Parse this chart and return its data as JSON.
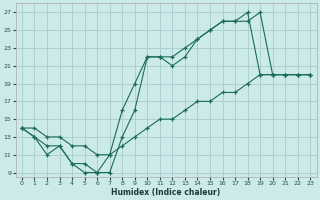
{
  "title": "",
  "xlabel": "Humidex (Indice chaleur)",
  "ylabel": "",
  "background_color": "#cceaea",
  "grid_color": "#aacccc",
  "line_color": "#1a6b5a",
  "xlim": [
    -0.5,
    23.5
  ],
  "ylim": [
    8.5,
    28
  ],
  "xticks": [
    0,
    1,
    2,
    3,
    4,
    5,
    6,
    7,
    8,
    9,
    10,
    11,
    12,
    13,
    14,
    15,
    16,
    17,
    18,
    19,
    20,
    21,
    22,
    23
  ],
  "yticks": [
    9,
    11,
    13,
    15,
    17,
    19,
    21,
    23,
    25,
    27
  ],
  "line1_x": [
    0,
    1,
    2,
    3,
    4,
    5,
    6,
    7,
    8,
    9,
    10,
    11,
    12,
    13,
    14,
    15,
    16,
    17,
    18,
    19,
    20,
    21,
    22,
    23
  ],
  "line1_y": [
    14,
    13,
    11,
    12,
    10,
    10,
    9,
    9,
    13,
    16,
    22,
    22,
    21,
    22,
    24,
    25,
    26,
    26,
    26,
    27,
    20,
    20,
    20,
    20
  ],
  "line2_x": [
    0,
    1,
    2,
    3,
    4,
    5,
    6,
    7,
    8,
    9,
    10,
    11,
    12,
    13,
    14,
    15,
    16,
    17,
    18,
    19,
    20,
    21,
    22,
    23
  ],
  "line2_y": [
    14,
    13,
    12,
    12,
    10,
    9,
    9,
    11,
    16,
    19,
    22,
    22,
    22,
    23,
    24,
    25,
    26,
    26,
    27,
    20,
    20,
    20,
    20,
    20
  ],
  "line3_x": [
    0,
    1,
    2,
    3,
    4,
    5,
    6,
    7,
    8,
    9,
    10,
    11,
    12,
    13,
    14,
    15,
    16,
    17,
    18,
    19,
    20,
    21,
    22,
    23
  ],
  "line3_y": [
    14,
    14,
    13,
    13,
    12,
    12,
    11,
    11,
    12,
    13,
    14,
    15,
    15,
    16,
    17,
    17,
    18,
    18,
    19,
    20,
    20,
    20,
    20,
    20
  ]
}
